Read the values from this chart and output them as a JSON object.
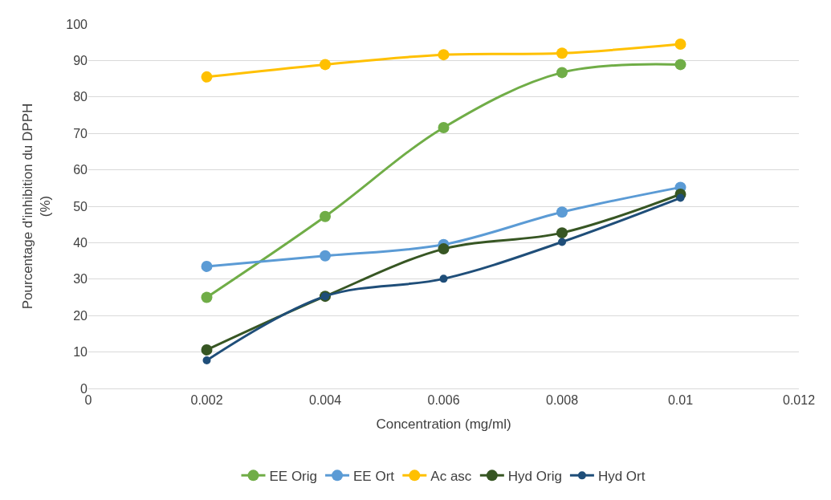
{
  "chart_data": {
    "type": "line",
    "xlabel": "Concentration (mg/ml)",
    "ylabel": "Pourcentage d'inhibition du DPPH (%)",
    "x": [
      0.002,
      0.004,
      0.006,
      0.008,
      0.01
    ],
    "series": [
      {
        "name": "EE Orig",
        "color": "#70ad47",
        "values": [
          25,
          47.2,
          71.6,
          86.7,
          88.9
        ]
      },
      {
        "name": "EE Ort",
        "color": "#5b9bd5",
        "values": [
          33.5,
          36.4,
          39.5,
          48.4,
          55.2
        ]
      },
      {
        "name": "Ac asc",
        "color": "#ffc000",
        "values": [
          85.5,
          88.9,
          91.6,
          92,
          94.5
        ]
      },
      {
        "name": "Hyd Orig",
        "color": "#375623",
        "values": [
          10.6,
          25.3,
          38.3,
          42.7,
          53.3
        ]
      },
      {
        "name": "Hyd Ort",
        "color": "#1f4e79",
        "values": [
          7.7,
          25.3,
          30.1,
          40.2,
          52.3
        ]
      }
    ],
    "xlim": [
      0,
      0.012
    ],
    "xticks": [
      0,
      0.002,
      0.004,
      0.006,
      0.008,
      0.01,
      0.012
    ],
    "ylim": [
      0,
      100
    ],
    "yticks": [
      0,
      10,
      20,
      30,
      40,
      50,
      60,
      70,
      80,
      90,
      100
    ],
    "grid": "y",
    "legend": "bottom",
    "marker": "circle",
    "line_style": "solid"
  }
}
